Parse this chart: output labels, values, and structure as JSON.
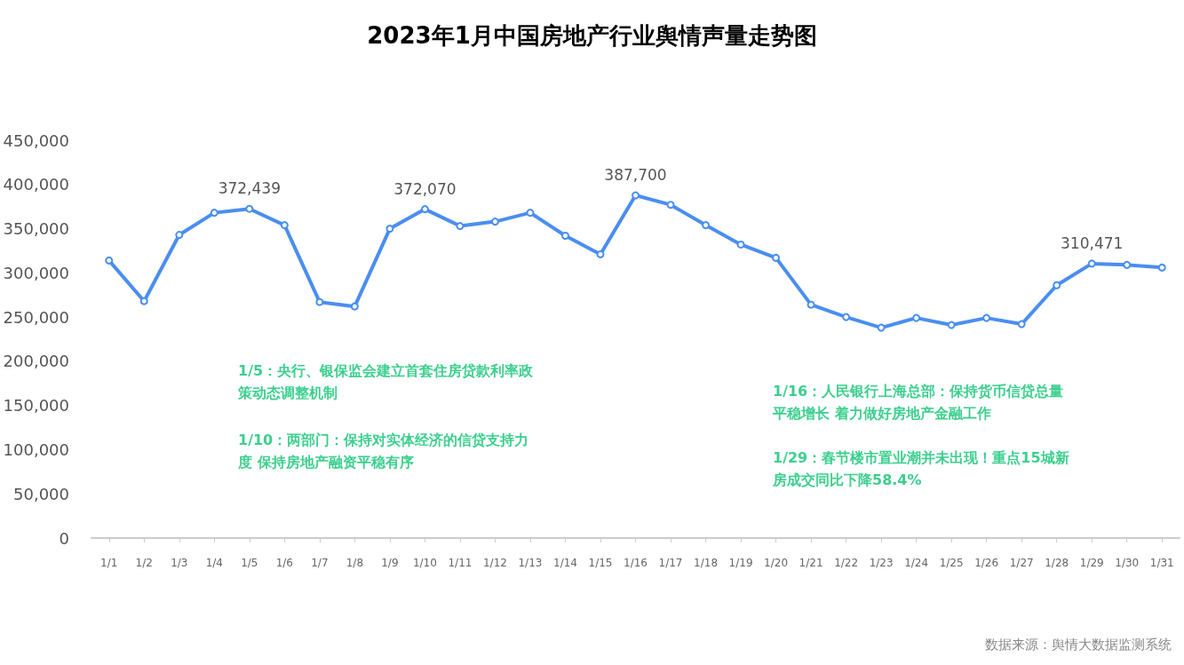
{
  "chart_data": {
    "type": "line",
    "title": "2023年1月中国房地产行业舆情声量走势图",
    "categories": [
      "1/1",
      "1/2",
      "1/3",
      "1/4",
      "1/5",
      "1/6",
      "1/7",
      "1/8",
      "1/9",
      "1/10",
      "1/11",
      "1/12",
      "1/13",
      "1/14",
      "1/15",
      "1/16",
      "1/17",
      "1/18",
      "1/19",
      "1/20",
      "1/21",
      "1/22",
      "1/23",
      "1/24",
      "1/25",
      "1/26",
      "1/27",
      "1/28",
      "1/29",
      "1/30",
      "1/31"
    ],
    "series": [
      {
        "color": "#4a8ef0",
        "values": [
          314000,
          268000,
          343000,
          368000,
          372439,
          354000,
          267000,
          262000,
          350000,
          372070,
          353000,
          358000,
          368000,
          342000,
          321000,
          387700,
          377000,
          354000,
          332000,
          317000,
          264000,
          250000,
          238000,
          249000,
          241000,
          249000,
          242000,
          286000,
          310471,
          309000,
          306000
        ],
        "value_labels": [
          null,
          null,
          null,
          null,
          "372,439",
          null,
          null,
          null,
          null,
          "372,070",
          null,
          null,
          null,
          null,
          null,
          "387,700",
          null,
          null,
          null,
          null,
          null,
          null,
          null,
          null,
          null,
          null,
          null,
          null,
          "310,471",
          null,
          null
        ]
      }
    ],
    "ylim": [
      0,
      450000
    ],
    "yticks": [
      0,
      {
        "value": 50000,
        "label": "50,000"
      },
      {
        "value": 100000,
        "label": "100,000"
      },
      {
        "value": 150000,
        "label": "150,000"
      },
      {
        "value": 200000,
        "label": "200,000"
      },
      {
        "value": 250000,
        "label": "250,000"
      },
      {
        "value": 300000,
        "label": "300,000"
      },
      {
        "value": 350000,
        "label": "350,000"
      },
      {
        "value": 400000,
        "label": "400,000"
      },
      {
        "value": 450000,
        "label": "450,000"
      }
    ],
    "grid": false,
    "marker": "circle",
    "line_style": "solid",
    "annotations": [
      "1/5：央行、银保监会建立首套住房贷款利率政策动态调整机制",
      "1/10：两部门：保持对实体经济的信贷支持力度 保持房地产融资平稳有序",
      "1/16：人民银行上海总部：保持货币信贷总量平稳增长 着力做好房地产金融工作",
      "1/29：春节楼市置业潮并未出现！重点15城新房成交同比下降58.4%",
      "数据来源：舆情大数据监测系统"
    ]
  }
}
